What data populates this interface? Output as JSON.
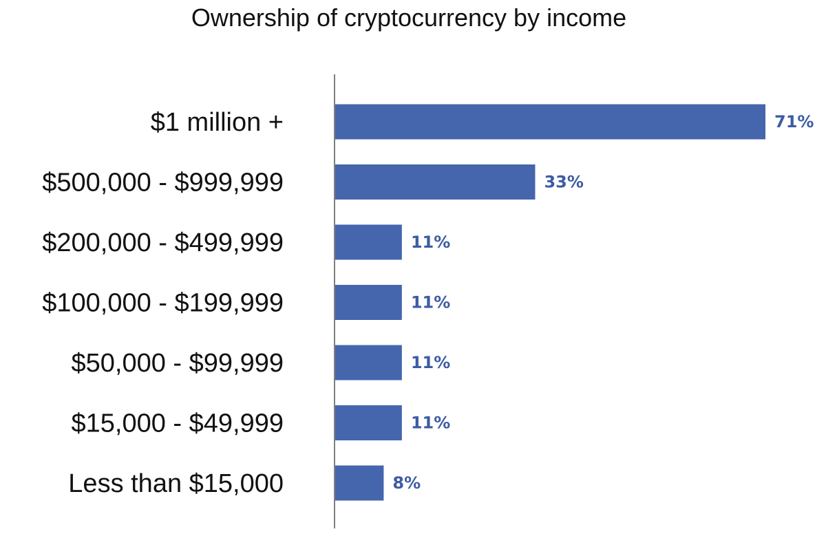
{
  "chart_data": {
    "type": "bar",
    "orientation": "horizontal",
    "title": "Ownership of cryptocurrency by income",
    "xlabel": "",
    "ylabel": "",
    "categories": [
      "$1 million +",
      "$500,000 - $999,999",
      "$200,000 - $499,999",
      "$100,000 - $199,999",
      "$50,000 - $99,999",
      "$15,000 - $49,999",
      "Less than $15,000"
    ],
    "values": [
      71,
      33,
      11,
      11,
      11,
      11,
      8
    ],
    "value_labels": [
      "71%",
      "33%",
      "11%",
      "11%",
      "11%",
      "11%",
      "8%"
    ],
    "value_unit": "%",
    "xlim": [
      0,
      71
    ],
    "grid": false,
    "legend": "none",
    "colors": {
      "bar": "#4566ad",
      "value_label": "#3d5ca3",
      "axis": "#555555",
      "text": "#111111"
    }
  }
}
